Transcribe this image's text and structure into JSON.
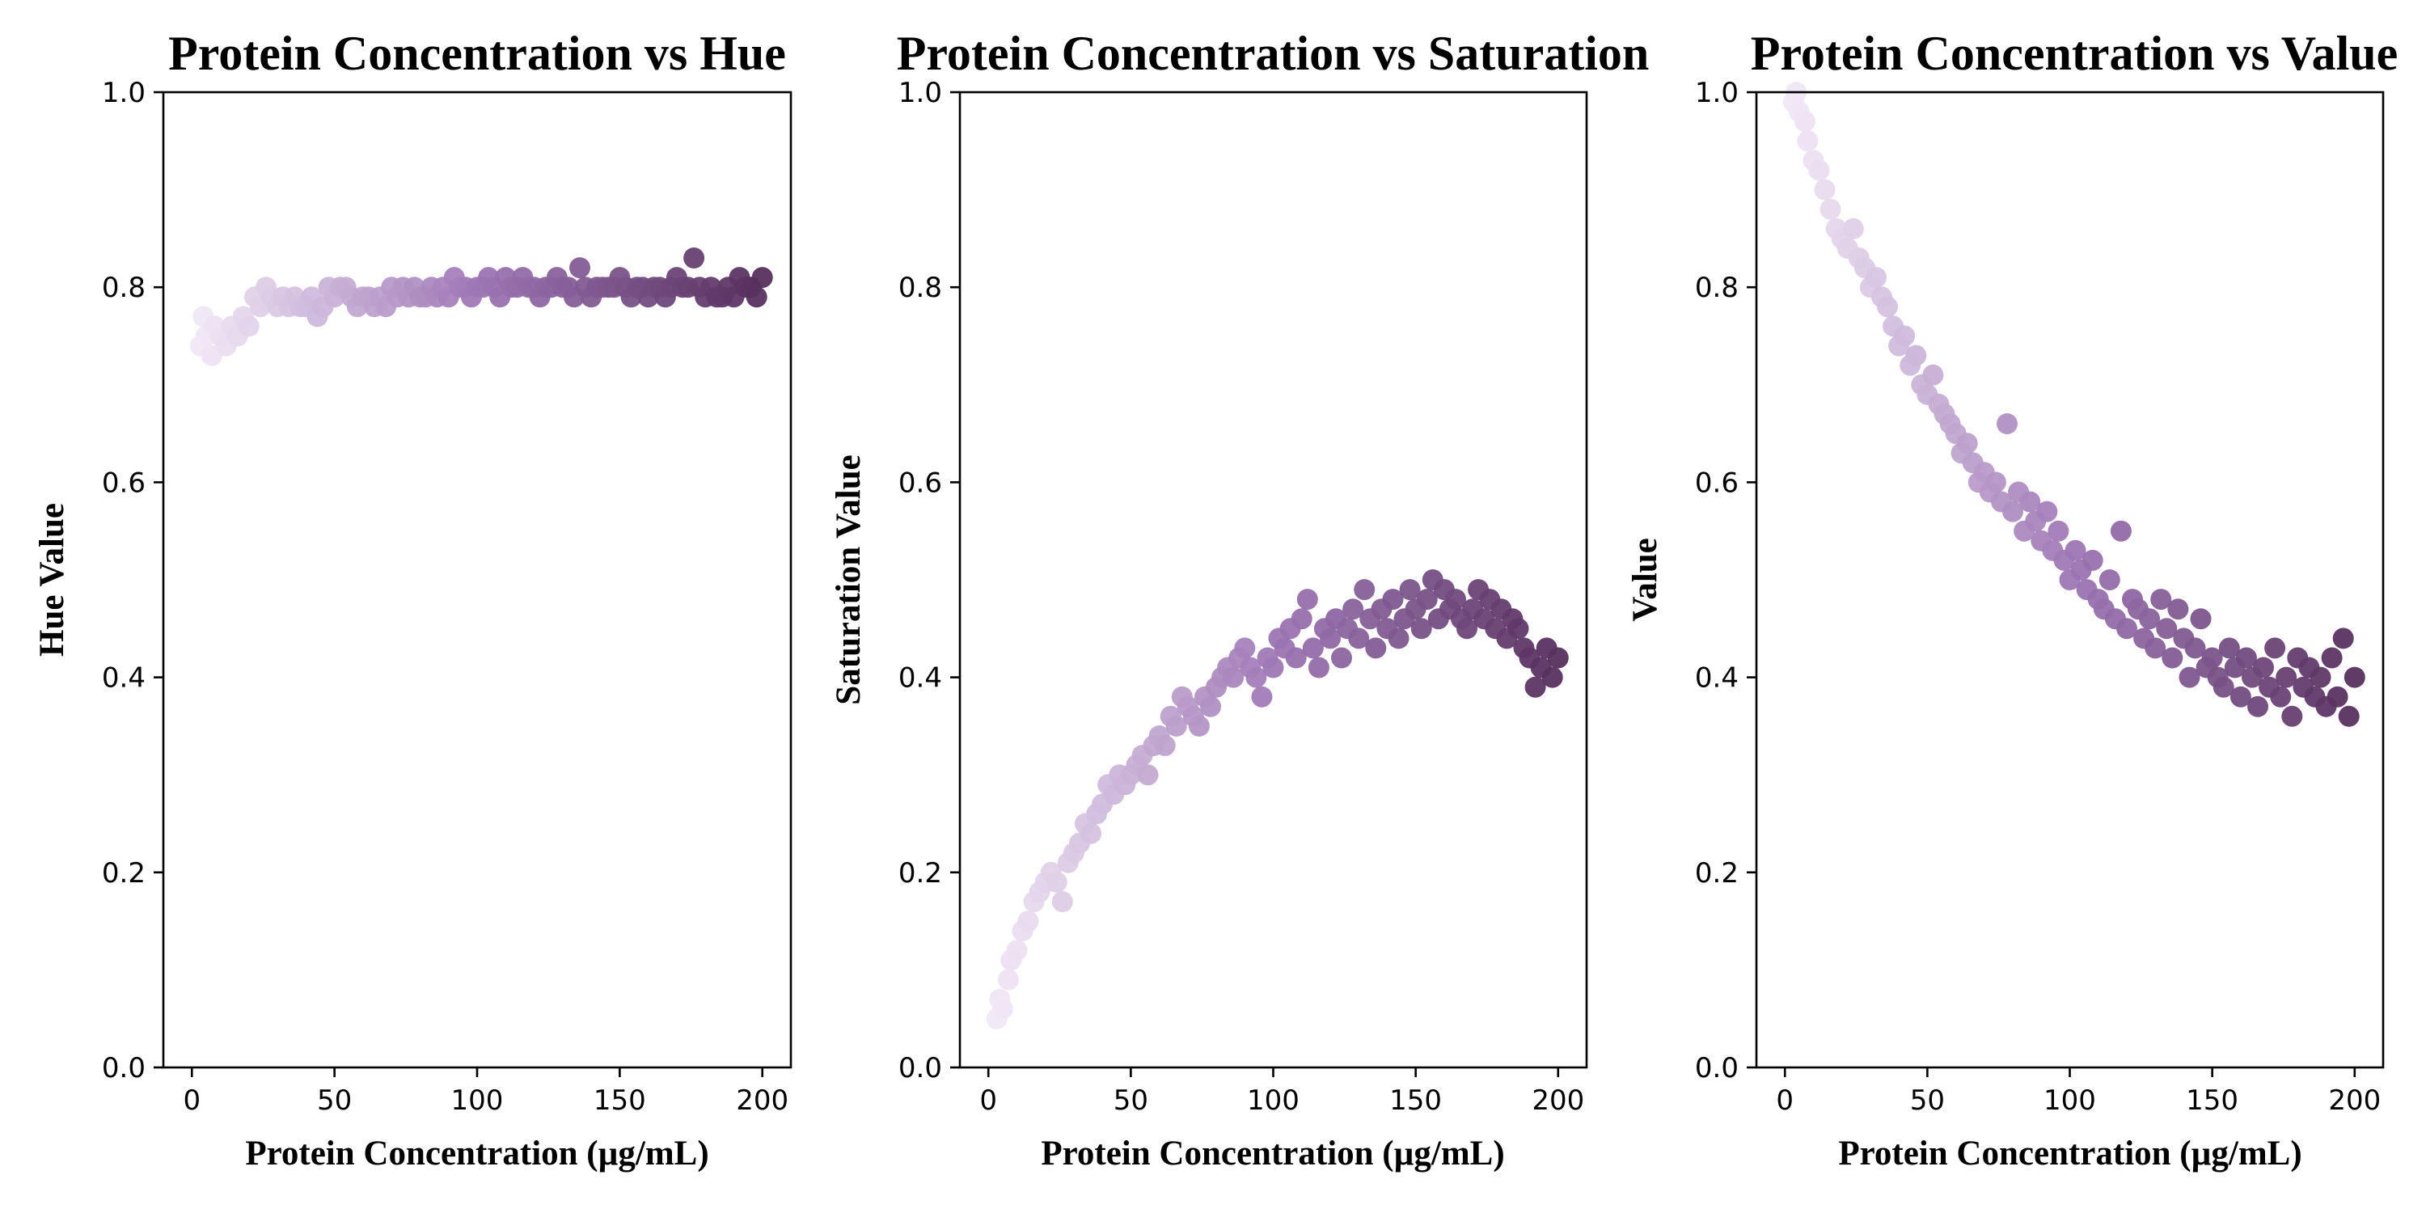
{
  "chart_data": [
    {
      "type": "scatter",
      "title": "Protein Concentration vs Hue",
      "xlabel": "Protein Concentration (µg/mL)",
      "ylabel": "Hue Value",
      "xlim": [
        -10,
        210
      ],
      "ylim": [
        0,
        1
      ],
      "x_ticks": [
        0,
        50,
        100,
        150,
        200
      ],
      "x_tick_labels": [
        "0",
        "50",
        "100",
        "150",
        "200"
      ],
      "y_ticks": [
        0,
        0.2,
        0.4,
        0.6,
        0.8,
        1.0
      ],
      "y_tick_labels": [
        "0.0",
        "0.2",
        "0.4",
        "0.6",
        "0.8",
        "1.0"
      ],
      "grid": false,
      "colors": {
        "light": "#f1e8f6",
        "mid": "#9d76b4",
        "dark": "#57305e"
      },
      "points": {
        "x": [
          3,
          4,
          5,
          7,
          8,
          10,
          12,
          14,
          16,
          18,
          20,
          22,
          24,
          26,
          28,
          30,
          32,
          34,
          36,
          38,
          40,
          42,
          44,
          46,
          48,
          50,
          52,
          54,
          56,
          58,
          60,
          62,
          64,
          66,
          68,
          70,
          72,
          74,
          76,
          78,
          80,
          82,
          84,
          86,
          88,
          90,
          92,
          94,
          96,
          98,
          100,
          102,
          104,
          106,
          108,
          110,
          112,
          114,
          116,
          118,
          120,
          122,
          124,
          126,
          128,
          130,
          132,
          134,
          136,
          138,
          140,
          142,
          144,
          146,
          148,
          150,
          152,
          154,
          156,
          158,
          160,
          162,
          164,
          166,
          168,
          170,
          172,
          174,
          176,
          178,
          180,
          182,
          184,
          186,
          188,
          190,
          192,
          194,
          196,
          198,
          200
        ],
        "y": [
          0.74,
          0.77,
          0.75,
          0.73,
          0.76,
          0.75,
          0.74,
          0.76,
          0.75,
          0.77,
          0.76,
          0.79,
          0.78,
          0.8,
          0.79,
          0.78,
          0.79,
          0.78,
          0.79,
          0.78,
          0.78,
          0.79,
          0.77,
          0.78,
          0.8,
          0.79,
          0.8,
          0.8,
          0.79,
          0.78,
          0.79,
          0.79,
          0.78,
          0.79,
          0.78,
          0.8,
          0.79,
          0.8,
          0.79,
          0.8,
          0.79,
          0.79,
          0.8,
          0.79,
          0.8,
          0.79,
          0.81,
          0.8,
          0.8,
          0.79,
          0.8,
          0.8,
          0.81,
          0.8,
          0.79,
          0.81,
          0.8,
          0.8,
          0.81,
          0.8,
          0.8,
          0.79,
          0.8,
          0.8,
          0.81,
          0.8,
          0.8,
          0.79,
          0.82,
          0.8,
          0.79,
          0.8,
          0.8,
          0.8,
          0.8,
          0.81,
          0.8,
          0.79,
          0.8,
          0.8,
          0.79,
          0.8,
          0.8,
          0.79,
          0.8,
          0.81,
          0.8,
          0.8,
          0.83,
          0.8,
          0.79,
          0.8,
          0.79,
          0.79,
          0.8,
          0.79,
          0.81,
          0.8,
          0.8,
          0.79,
          0.81
        ]
      }
    },
    {
      "type": "scatter",
      "title": "Protein Concentration vs Saturation",
      "xlabel": "Protein Concentration (µg/mL)",
      "ylabel": "Saturation Value",
      "xlim": [
        -10,
        210
      ],
      "ylim": [
        0,
        1
      ],
      "x_ticks": [
        0,
        50,
        100,
        150,
        200
      ],
      "x_tick_labels": [
        "0",
        "50",
        "100",
        "150",
        "200"
      ],
      "y_ticks": [
        0,
        0.2,
        0.4,
        0.6,
        0.8,
        1.0
      ],
      "y_tick_labels": [
        "0.0",
        "0.2",
        "0.4",
        "0.6",
        "0.8",
        "1.0"
      ],
      "grid": false,
      "colors": {
        "light": "#f1e8f6",
        "mid": "#9d76b4",
        "dark": "#57305e"
      },
      "points": {
        "x": [
          3,
          4,
          5,
          7,
          8,
          10,
          12,
          14,
          16,
          18,
          20,
          22,
          24,
          26,
          28,
          30,
          32,
          34,
          36,
          38,
          40,
          42,
          44,
          46,
          48,
          50,
          52,
          54,
          56,
          58,
          60,
          62,
          64,
          66,
          68,
          70,
          72,
          74,
          76,
          78,
          80,
          82,
          84,
          86,
          88,
          90,
          92,
          94,
          96,
          98,
          100,
          102,
          104,
          106,
          108,
          110,
          112,
          114,
          116,
          118,
          120,
          122,
          124,
          126,
          128,
          130,
          132,
          134,
          136,
          138,
          140,
          142,
          144,
          146,
          148,
          150,
          152,
          154,
          156,
          158,
          160,
          162,
          164,
          166,
          168,
          170,
          172,
          174,
          176,
          178,
          180,
          182,
          184,
          186,
          188,
          190,
          192,
          194,
          196,
          198,
          200
        ],
        "y": [
          0.05,
          0.07,
          0.06,
          0.09,
          0.11,
          0.12,
          0.14,
          0.15,
          0.17,
          0.18,
          0.19,
          0.2,
          0.19,
          0.17,
          0.21,
          0.22,
          0.23,
          0.25,
          0.24,
          0.26,
          0.27,
          0.29,
          0.28,
          0.3,
          0.29,
          0.3,
          0.31,
          0.32,
          0.3,
          0.33,
          0.34,
          0.33,
          0.36,
          0.35,
          0.38,
          0.37,
          0.36,
          0.35,
          0.38,
          0.37,
          0.39,
          0.4,
          0.41,
          0.4,
          0.42,
          0.43,
          0.41,
          0.4,
          0.38,
          0.42,
          0.41,
          0.44,
          0.43,
          0.45,
          0.42,
          0.46,
          0.48,
          0.43,
          0.41,
          0.45,
          0.44,
          0.46,
          0.42,
          0.45,
          0.47,
          0.44,
          0.49,
          0.46,
          0.43,
          0.47,
          0.45,
          0.48,
          0.44,
          0.46,
          0.49,
          0.47,
          0.45,
          0.48,
          0.5,
          0.46,
          0.49,
          0.47,
          0.48,
          0.46,
          0.45,
          0.47,
          0.49,
          0.46,
          0.48,
          0.45,
          0.47,
          0.44,
          0.46,
          0.45,
          0.43,
          0.42,
          0.39,
          0.41,
          0.43,
          0.4,
          0.42
        ]
      }
    },
    {
      "type": "scatter",
      "title": "Protein Concentration vs Value",
      "xlabel": "Protein Concentration (µg/mL)",
      "ylabel": "Value",
      "xlim": [
        -10,
        210
      ],
      "ylim": [
        0,
        1
      ],
      "x_ticks": [
        0,
        50,
        100,
        150,
        200
      ],
      "x_tick_labels": [
        "0",
        "50",
        "100",
        "150",
        "200"
      ],
      "y_ticks": [
        0,
        0.2,
        0.4,
        0.6,
        0.8,
        1.0
      ],
      "y_tick_labels": [
        "0.0",
        "0.2",
        "0.4",
        "0.6",
        "0.8",
        "1.0"
      ],
      "grid": false,
      "colors": {
        "light": "#f1e8f6",
        "mid": "#9d76b4",
        "dark": "#57305e"
      },
      "points": {
        "x": [
          3,
          4,
          5,
          7,
          8,
          10,
          12,
          14,
          16,
          18,
          20,
          22,
          24,
          26,
          28,
          30,
          32,
          34,
          36,
          38,
          40,
          42,
          44,
          46,
          48,
          50,
          52,
          54,
          56,
          58,
          60,
          62,
          64,
          66,
          68,
          70,
          72,
          74,
          76,
          78,
          80,
          82,
          84,
          86,
          88,
          90,
          92,
          94,
          96,
          98,
          100,
          102,
          104,
          106,
          108,
          110,
          112,
          114,
          116,
          118,
          120,
          122,
          124,
          126,
          128,
          130,
          132,
          134,
          136,
          138,
          140,
          142,
          144,
          146,
          148,
          150,
          152,
          154,
          156,
          158,
          160,
          162,
          164,
          166,
          168,
          170,
          172,
          174,
          176,
          178,
          180,
          182,
          184,
          186,
          188,
          190,
          192,
          194,
          196,
          198,
          200
        ],
        "y": [
          0.99,
          1.0,
          0.98,
          0.97,
          0.95,
          0.93,
          0.92,
          0.9,
          0.88,
          0.86,
          0.85,
          0.84,
          0.86,
          0.83,
          0.82,
          0.8,
          0.81,
          0.79,
          0.78,
          0.76,
          0.74,
          0.75,
          0.72,
          0.73,
          0.7,
          0.69,
          0.71,
          0.68,
          0.67,
          0.66,
          0.65,
          0.63,
          0.64,
          0.62,
          0.6,
          0.61,
          0.59,
          0.6,
          0.58,
          0.66,
          0.57,
          0.59,
          0.55,
          0.58,
          0.56,
          0.54,
          0.57,
          0.53,
          0.55,
          0.52,
          0.5,
          0.53,
          0.51,
          0.49,
          0.52,
          0.48,
          0.47,
          0.5,
          0.46,
          0.55,
          0.45,
          0.48,
          0.47,
          0.44,
          0.46,
          0.43,
          0.48,
          0.45,
          0.42,
          0.47,
          0.44,
          0.4,
          0.43,
          0.46,
          0.41,
          0.42,
          0.4,
          0.39,
          0.43,
          0.41,
          0.38,
          0.42,
          0.4,
          0.37,
          0.41,
          0.39,
          0.43,
          0.38,
          0.4,
          0.36,
          0.42,
          0.39,
          0.41,
          0.38,
          0.4,
          0.37,
          0.42,
          0.38,
          0.44,
          0.36,
          0.4
        ]
      }
    }
  ]
}
